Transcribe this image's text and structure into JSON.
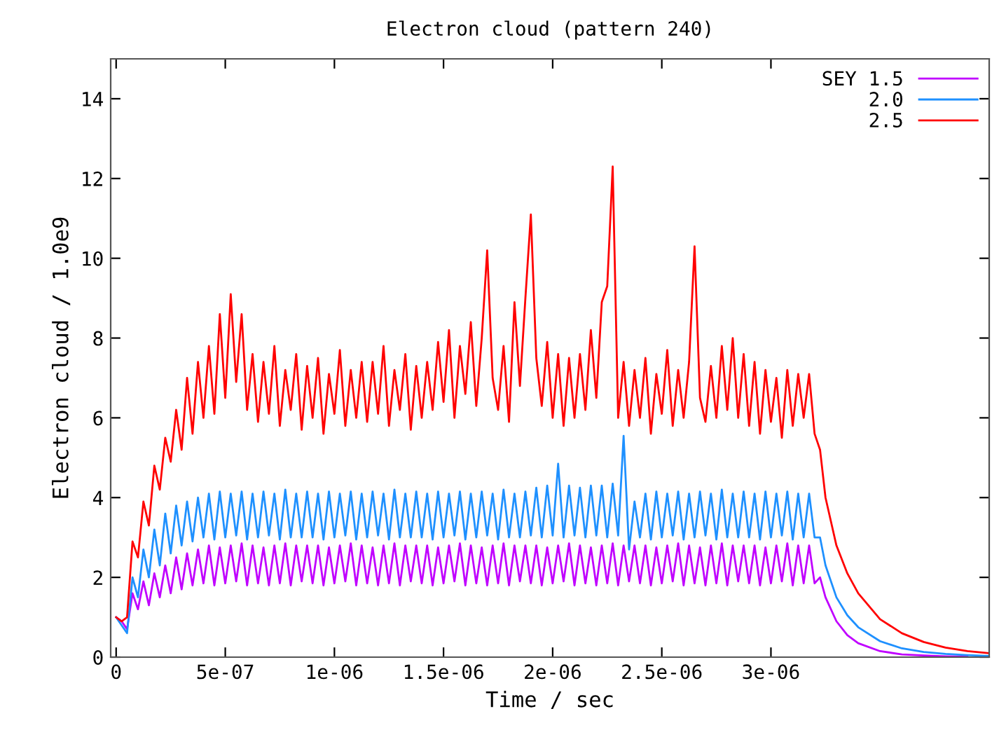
{
  "chart_data": {
    "type": "line",
    "title": "Electron cloud (pattern 240)",
    "xlabel": "Time / sec",
    "ylabel": "Electron cloud / 1.0e9",
    "x": [
      0,
      2.5e-08,
      5e-08,
      7.5e-08,
      1e-07,
      1.25e-07,
      1.5e-07,
      1.75e-07,
      2e-07,
      2.25e-07,
      2.5e-07,
      2.75e-07,
      3e-07,
      3.25e-07,
      3.5e-07,
      3.75e-07,
      4e-07,
      4.25e-07,
      4.5e-07,
      4.75e-07,
      5e-07,
      5.25e-07,
      5.5e-07,
      5.75e-07,
      6e-07,
      6.25e-07,
      6.5e-07,
      6.75e-07,
      7e-07,
      7.25e-07,
      7.5e-07,
      7.75e-07,
      8e-07,
      8.25e-07,
      8.5e-07,
      8.75e-07,
      9e-07,
      9.25e-07,
      9.5e-07,
      9.75e-07,
      1e-06,
      1.025e-06,
      1.05e-06,
      1.075e-06,
      1.1e-06,
      1.125e-06,
      1.15e-06,
      1.175e-06,
      1.2e-06,
      1.225e-06,
      1.25e-06,
      1.275e-06,
      1.3e-06,
      1.325e-06,
      1.35e-06,
      1.375e-06,
      1.4e-06,
      1.425e-06,
      1.45e-06,
      1.475e-06,
      1.5e-06,
      1.525e-06,
      1.55e-06,
      1.575e-06,
      1.6e-06,
      1.625e-06,
      1.65e-06,
      1.675e-06,
      1.7e-06,
      1.725e-06,
      1.75e-06,
      1.775e-06,
      1.8e-06,
      1.825e-06,
      1.85e-06,
      1.875e-06,
      1.9e-06,
      1.925e-06,
      1.95e-06,
      1.975e-06,
      2e-06,
      2.025e-06,
      2.05e-06,
      2.075e-06,
      2.1e-06,
      2.125e-06,
      2.15e-06,
      2.175e-06,
      2.2e-06,
      2.225e-06,
      2.25e-06,
      2.275e-06,
      2.3e-06,
      2.325e-06,
      2.35e-06,
      2.375e-06,
      2.4e-06,
      2.425e-06,
      2.45e-06,
      2.475e-06,
      2.5e-06,
      2.525e-06,
      2.55e-06,
      2.575e-06,
      2.6e-06,
      2.625e-06,
      2.65e-06,
      2.675e-06,
      2.7e-06,
      2.725e-06,
      2.75e-06,
      2.775e-06,
      2.8e-06,
      2.825e-06,
      2.85e-06,
      2.875e-06,
      2.9e-06,
      2.925e-06,
      2.95e-06,
      2.975e-06,
      3e-06,
      3.025e-06,
      3.05e-06,
      3.075e-06,
      3.1e-06,
      3.125e-06,
      3.15e-06,
      3.175e-06,
      3.2e-06,
      3.225e-06,
      3.25e-06,
      3.3e-06,
      3.35e-06,
      3.4e-06,
      3.5e-06,
      3.6e-06,
      3.7e-06,
      3.8e-06,
      3.9e-06,
      4e-06
    ],
    "series": [
      {
        "name": "SEY 1.5",
        "color": "#c000ff",
        "values": [
          1.0,
          0.9,
          0.7,
          1.6,
          1.2,
          1.9,
          1.3,
          2.1,
          1.5,
          2.3,
          1.6,
          2.5,
          1.7,
          2.6,
          1.8,
          2.7,
          1.85,
          2.8,
          1.8,
          2.75,
          1.85,
          2.8,
          1.9,
          2.85,
          1.8,
          2.8,
          1.85,
          2.75,
          1.8,
          2.8,
          1.85,
          2.85,
          1.8,
          2.8,
          1.9,
          2.8,
          1.85,
          2.8,
          1.8,
          2.75,
          1.85,
          2.8,
          1.9,
          2.85,
          1.8,
          2.8,
          1.85,
          2.75,
          1.8,
          2.8,
          1.85,
          2.85,
          1.8,
          2.8,
          1.9,
          2.8,
          1.85,
          2.8,
          1.8,
          2.75,
          1.85,
          2.8,
          1.9,
          2.85,
          1.8,
          2.8,
          1.85,
          2.75,
          1.8,
          2.8,
          1.85,
          2.85,
          1.8,
          2.8,
          1.9,
          2.8,
          1.85,
          2.8,
          1.8,
          2.75,
          1.85,
          2.8,
          1.9,
          2.85,
          1.8,
          2.8,
          1.85,
          2.75,
          1.8,
          2.8,
          1.85,
          2.85,
          1.8,
          2.8,
          1.9,
          2.8,
          1.85,
          2.8,
          1.8,
          2.75,
          1.85,
          2.8,
          1.9,
          2.85,
          1.8,
          2.8,
          1.85,
          2.75,
          1.8,
          2.8,
          1.85,
          2.85,
          1.8,
          2.8,
          1.9,
          2.8,
          1.85,
          2.8,
          1.8,
          2.75,
          1.85,
          2.8,
          1.9,
          2.85,
          1.8,
          2.8,
          1.85,
          2.8,
          1.85,
          2.0,
          1.5,
          0.9,
          0.55,
          0.35,
          0.15,
          0.07,
          0.04,
          0.02,
          0.01,
          null
        ]
      },
      {
        "name": "2.0",
        "color": "#1e90ff",
        "values": [
          1.0,
          0.8,
          0.6,
          2.0,
          1.5,
          2.7,
          2.0,
          3.2,
          2.3,
          3.6,
          2.6,
          3.8,
          2.8,
          3.9,
          2.9,
          4.0,
          3.0,
          4.1,
          2.95,
          4.15,
          3.0,
          4.1,
          3.05,
          4.15,
          2.95,
          4.1,
          3.0,
          4.15,
          3.05,
          4.1,
          2.95,
          4.2,
          3.0,
          4.1,
          3.0,
          4.15,
          3.0,
          4.1,
          2.95,
          4.15,
          3.0,
          4.1,
          3.05,
          4.15,
          2.95,
          4.1,
          3.0,
          4.15,
          3.05,
          4.1,
          2.95,
          4.2,
          3.0,
          4.1,
          3.0,
          4.15,
          3.0,
          4.1,
          2.95,
          4.15,
          3.0,
          4.1,
          3.05,
          4.15,
          2.95,
          4.1,
          3.0,
          4.15,
          3.05,
          4.1,
          2.95,
          4.2,
          3.0,
          4.1,
          3.0,
          4.15,
          3.05,
          4.25,
          3.0,
          4.3,
          3.05,
          4.85,
          3.0,
          4.3,
          3.05,
          4.25,
          3.0,
          4.3,
          3.05,
          4.3,
          3.0,
          4.35,
          3.05,
          5.55,
          2.7,
          3.9,
          3.0,
          4.1,
          2.95,
          4.15,
          3.0,
          4.1,
          3.05,
          4.15,
          2.95,
          4.1,
          3.0,
          4.15,
          3.05,
          4.1,
          2.95,
          4.2,
          3.0,
          4.1,
          3.0,
          4.15,
          3.0,
          4.1,
          2.95,
          4.15,
          3.0,
          4.1,
          3.05,
          4.15,
          2.95,
          4.1,
          3.0,
          4.1,
          3.0,
          3.0,
          2.3,
          1.5,
          1.05,
          0.75,
          0.4,
          0.22,
          0.13,
          0.08,
          0.05,
          0.03
        ]
      },
      {
        "name": "2.5",
        "color": "#ff0000",
        "values": [
          1.0,
          0.9,
          1.0,
          2.9,
          2.5,
          3.9,
          3.3,
          4.8,
          4.2,
          5.5,
          4.9,
          6.2,
          5.2,
          7.0,
          5.6,
          7.4,
          6.0,
          7.8,
          6.1,
          8.6,
          6.5,
          9.1,
          6.9,
          8.6,
          6.2,
          7.6,
          5.9,
          7.4,
          6.1,
          7.8,
          5.8,
          7.2,
          6.2,
          7.6,
          5.7,
          7.3,
          6.0,
          7.5,
          5.6,
          7.1,
          6.1,
          7.7,
          5.8,
          7.2,
          6.0,
          7.4,
          5.9,
          7.4,
          6.1,
          7.8,
          5.8,
          7.2,
          6.2,
          7.6,
          5.7,
          7.3,
          6.0,
          7.4,
          6.2,
          7.9,
          6.4,
          8.2,
          6.0,
          7.8,
          6.6,
          8.4,
          6.3,
          8.0,
          10.2,
          7.0,
          6.2,
          7.8,
          5.9,
          8.9,
          6.8,
          9.0,
          11.1,
          7.5,
          6.3,
          7.9,
          6.0,
          7.6,
          5.8,
          7.5,
          6.0,
          7.6,
          6.2,
          8.2,
          6.5,
          8.9,
          9.3,
          12.3,
          6.0,
          7.4,
          5.8,
          7.2,
          6.0,
          7.5,
          5.6,
          7.1,
          6.1,
          7.7,
          5.8,
          7.2,
          6.0,
          7.4,
          10.3,
          6.5,
          5.9,
          7.3,
          6.0,
          7.8,
          6.2,
          8.0,
          6.0,
          7.6,
          5.8,
          7.4,
          5.6,
          7.2,
          5.9,
          7.0,
          5.5,
          7.2,
          5.8,
          7.1,
          6.0,
          7.1,
          5.6,
          5.2,
          4.0,
          2.8,
          2.1,
          1.6,
          0.95,
          0.6,
          0.38,
          0.24,
          0.15,
          0.1
        ]
      }
    ],
    "xlim": [
      -2.5e-08,
      4e-06
    ],
    "xticks": [
      0,
      {
        "value": 5e-07,
        "label": "5e-07"
      },
      {
        "value": 1e-06,
        "label": "1e-06"
      },
      {
        "value": 1.5e-06,
        "label": "1.5e-06"
      },
      {
        "value": 2e-06,
        "label": "2e-06"
      },
      {
        "value": 2.5e-06,
        "label": "2.5e-06"
      },
      {
        "value": 3e-06,
        "label": "3e-06"
      }
    ],
    "ylim": [
      0,
      15
    ],
    "yticks": [
      0,
      2,
      4,
      6,
      8,
      10,
      12,
      14
    ],
    "grid": false,
    "legend": "top right",
    "marker": "none",
    "line_style": "solid"
  }
}
